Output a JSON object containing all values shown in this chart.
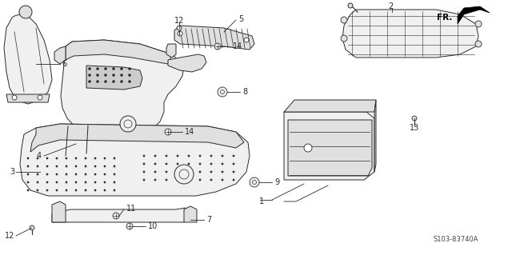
{
  "bg_color": "#ffffff",
  "fig_width": 6.4,
  "fig_height": 3.19,
  "diagram_code": "S103-83740A",
  "line_color": "#2a2a2a",
  "fill_light": "#f0f0f0",
  "fill_mid": "#e0e0e0",
  "fill_dark": "#cccccc",
  "font_size": 7.0
}
